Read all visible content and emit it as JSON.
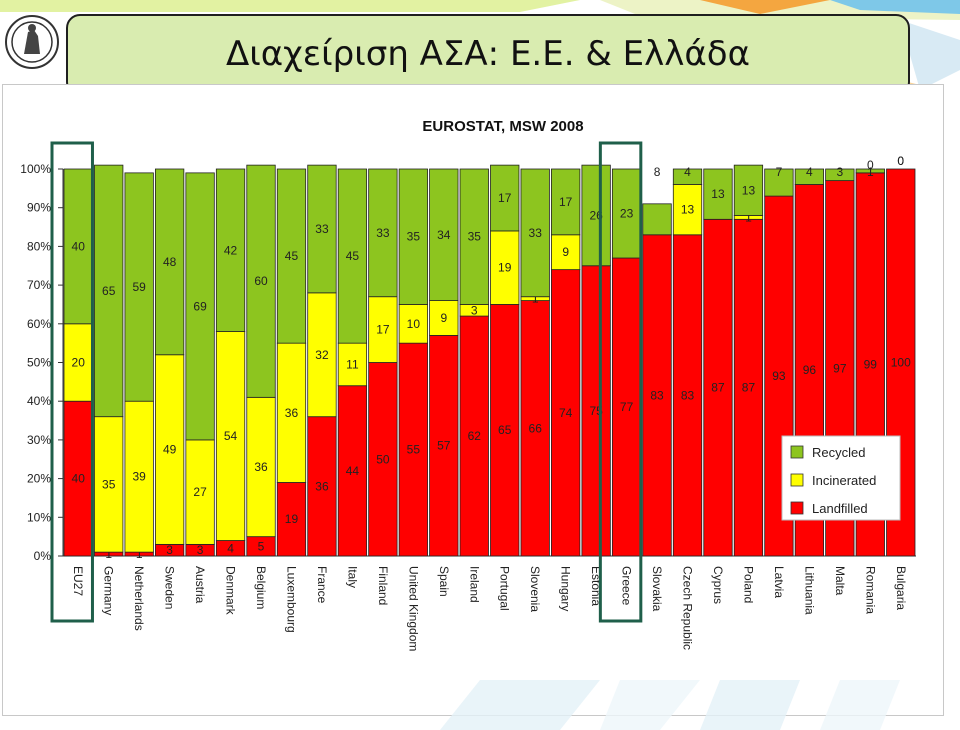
{
  "slide": {
    "title": "Διαχείριση ΑΣΑ: Ε.Ε. & Ελλάδα",
    "logo_icon": "university-seal-icon"
  },
  "colors": {
    "landfilled": "#ff0000",
    "incinerated": "#ffff00",
    "recycled": "#8dc51f",
    "highlight_box": "#1f5f4a",
    "title_box_fill": "#d9ecb0"
  },
  "chart_data": {
    "type": "bar",
    "stacked": true,
    "title": "EUROSTAT, MSW 2008",
    "y_tick_labels": [
      "0%",
      "10%",
      "20%",
      "30%",
      "40%",
      "50%",
      "60%",
      "70%",
      "80%",
      "90%",
      "100%"
    ],
    "ylim": [
      0,
      100
    ],
    "grid": false,
    "legend_position": "right",
    "categories": [
      "EU27",
      "Germany",
      "Netherlands",
      "Sweden",
      "Austria",
      "Denmark",
      "Belgium",
      "Luxembourg",
      "France",
      "Italy",
      "Finland",
      "United Kingdom",
      "Spain",
      "Ireland",
      "Portugal",
      "Slovenia",
      "Hungary",
      "Estonia",
      "Greece",
      "Slovakia",
      "Czech Republic",
      "Cyprus",
      "Poland",
      "Latvia",
      "Lithuania",
      "Malta",
      "Romania",
      "Bulgaria"
    ],
    "series": [
      {
        "name": "Landfilled",
        "values": [
          40,
          1,
          1,
          3,
          3,
          4,
          5,
          19,
          36,
          44,
          50,
          55,
          57,
          62,
          65,
          66,
          74,
          75,
          77,
          83,
          83,
          87,
          87,
          93,
          96,
          97,
          99,
          100
        ]
      },
      {
        "name": "Incinerated",
        "values": [
          20,
          35,
          39,
          49,
          27,
          54,
          36,
          36,
          32,
          11,
          17,
          10,
          9,
          3,
          19,
          1,
          9,
          0,
          0,
          0,
          13,
          0,
          1,
          0,
          0,
          0,
          0,
          0
        ]
      },
      {
        "name": "Recycled",
        "values": [
          40,
          65,
          59,
          48,
          69,
          42,
          60,
          45,
          33,
          45,
          33,
          35,
          34,
          35,
          17,
          33,
          17,
          26,
          23,
          8,
          4,
          13,
          13,
          7,
          4,
          3,
          1,
          0
        ]
      }
    ],
    "highlighted_categories": [
      "EU27",
      "Greece"
    ],
    "legend": [
      "Recycled",
      "Incinerated",
      "Landfilled"
    ]
  }
}
